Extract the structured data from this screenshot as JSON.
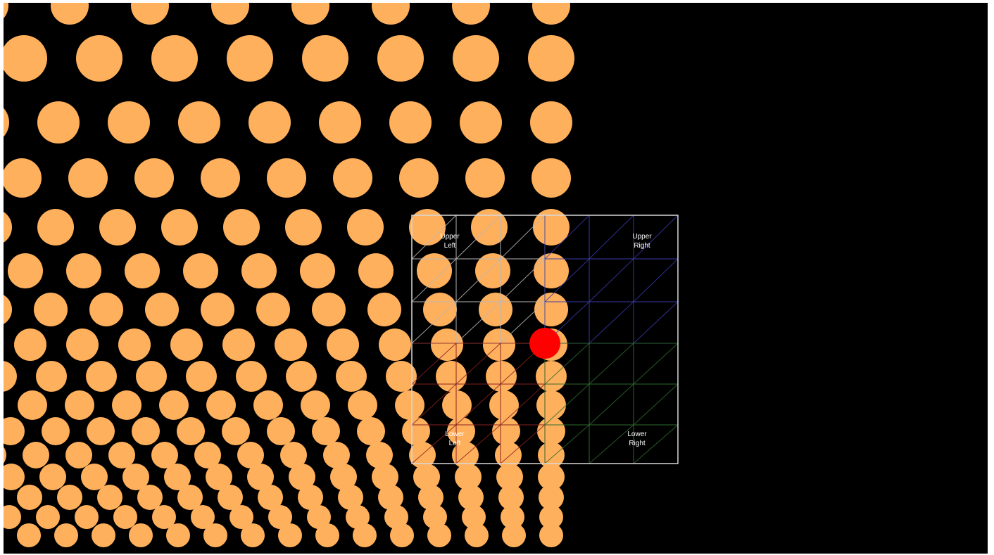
{
  "scene": {
    "background_color": "#000000",
    "dot_color": "#ffb05c",
    "highlight_color": "#ff0000",
    "quadrant_colors": {
      "upper_left": "#b8b8b8",
      "upper_right": "#3838a8",
      "lower_left": "#8a2020",
      "lower_right": "#2e6a2e",
      "frame": "#d8d8d8"
    }
  },
  "labels": {
    "upper_left": {
      "line1": "Upper",
      "line2": "Left"
    },
    "upper_right": {
      "line1": "Upper",
      "line2": "Right"
    },
    "lower_left": {
      "line1": "Lower",
      "line2": "Left"
    },
    "lower_right": {
      "line1": "Lower",
      "line2": "Right"
    }
  }
}
